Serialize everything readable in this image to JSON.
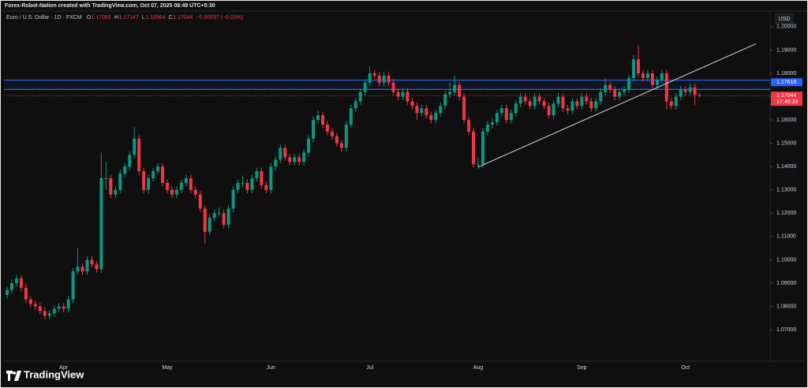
{
  "chart_data": {
    "type": "candlestick",
    "header": "Forex-Robot-Nation created with TradingView.com, Oct 07, 2025 08:49 UTC+5:30",
    "symbol": "Euro / U.S. Dollar · 1D · FXCM",
    "ohlc_letters": [
      "O",
      "H",
      "L",
      "C"
    ],
    "change": "−0.00037 (−0.03%)",
    "currency": "USD",
    "countdown": "17:40:33",
    "brand": "TradingView",
    "up_color": "#089981",
    "down_color": "#f23645",
    "ylim": [
      1.0565,
      1.203
    ],
    "yticks": [
      {
        "value": 1.07,
        "label": "1.07000"
      },
      {
        "value": 1.08,
        "label": "1.08000"
      },
      {
        "value": 1.09,
        "label": "1.09000"
      },
      {
        "value": 1.1,
        "label": "1.10000"
      },
      {
        "value": 1.11,
        "label": "1.11000"
      },
      {
        "value": 1.12,
        "label": "1.12000"
      },
      {
        "value": 1.13,
        "label": "1.13000"
      },
      {
        "value": 1.14,
        "label": "1.14000"
      },
      {
        "value": 1.15,
        "label": "1.15000"
      },
      {
        "value": 1.16,
        "label": "1.16000"
      },
      {
        "value": 1.17,
        "label": "1.17000"
      },
      {
        "value": 1.18,
        "label": "1.18000"
      },
      {
        "value": 1.19,
        "label": "1.19000"
      },
      {
        "value": 1.2,
        "label": "1.20000"
      }
    ],
    "zone": [
      1.1731,
      1.1771
    ],
    "zone_color": "#2962ff",
    "zone_label": 1.17618,
    "trendline": {
      "x": [
        100,
        159
      ],
      "y": [
        1.1398,
        1.1927
      ]
    },
    "categories": [
      null,
      null,
      null,
      null,
      null,
      null,
      null,
      null,
      null,
      null,
      null,
      null,
      "Apr",
      null,
      null,
      null,
      null,
      null,
      null,
      null,
      null,
      null,
      null,
      null,
      null,
      null,
      null,
      null,
      null,
      null,
      null,
      null,
      null,
      null,
      "May",
      null,
      null,
      null,
      null,
      null,
      null,
      null,
      null,
      null,
      null,
      null,
      null,
      null,
      null,
      null,
      null,
      null,
      null,
      null,
      null,
      null,
      "Jun",
      null,
      null,
      null,
      null,
      null,
      null,
      null,
      null,
      null,
      null,
      null,
      null,
      null,
      null,
      null,
      null,
      null,
      null,
      null,
      null,
      "Jul",
      null,
      null,
      null,
      null,
      null,
      null,
      null,
      null,
      null,
      null,
      null,
      null,
      null,
      null,
      null,
      null,
      null,
      null,
      null,
      null,
      null,
      null,
      "Aug",
      null,
      null,
      null,
      null,
      null,
      null,
      null,
      null,
      null,
      null,
      null,
      null,
      null,
      null,
      null,
      null,
      null,
      null,
      null,
      null,
      null,
      "Sep",
      null,
      null,
      null,
      null,
      null,
      null,
      null,
      null,
      null,
      null,
      null,
      null,
      null,
      null,
      null,
      null,
      null,
      null,
      null,
      null,
      null,
      "Oct",
      null,
      null,
      null
    ],
    "ohlc": [
      [
        1.085,
        1.0885,
        1.0835,
        1.087
      ],
      [
        1.087,
        1.0915,
        1.0855,
        1.09
      ],
      [
        1.09,
        1.0935,
        1.0885,
        1.092
      ],
      [
        1.092,
        1.0935,
        1.0865,
        1.088
      ],
      [
        1.088,
        1.0895,
        1.0815,
        1.083
      ],
      [
        1.083,
        1.0845,
        1.0795,
        1.081
      ],
      [
        1.081,
        1.0825,
        1.0785,
        1.08
      ],
      [
        1.08,
        1.0815,
        1.0765,
        1.078
      ],
      [
        1.078,
        1.0795,
        1.0745,
        1.076
      ],
      [
        1.076,
        1.0785,
        1.0745,
        1.077
      ],
      [
        1.077,
        1.0805,
        1.0755,
        1.079
      ],
      [
        1.079,
        1.0815,
        1.0775,
        1.08
      ],
      [
        1.08,
        1.0815,
        1.0775,
        1.079
      ],
      [
        1.079,
        1.0845,
        1.0775,
        1.083
      ],
      [
        1.083,
        1.0965,
        1.0815,
        1.095
      ],
      [
        1.095,
        1.105,
        1.0935,
        1.097
      ],
      [
        1.097,
        1.0985,
        1.0935,
        1.095
      ],
      [
        1.095,
        1.1015,
        1.0935,
        1.1
      ],
      [
        1.1,
        1.1015,
        1.0965,
        1.098
      ],
      [
        1.098,
        1.0995,
        1.0945,
        1.096
      ],
      [
        1.096,
        1.146,
        1.0945,
        1.135
      ],
      [
        1.135,
        1.142,
        1.13,
        1.135
      ],
      [
        1.135,
        1.1365,
        1.1265,
        1.128
      ],
      [
        1.128,
        1.1315,
        1.1265,
        1.13
      ],
      [
        1.13,
        1.1385,
        1.1285,
        1.137
      ],
      [
        1.137,
        1.1415,
        1.1355,
        1.14
      ],
      [
        1.14,
        1.1465,
        1.1385,
        1.145
      ],
      [
        1.145,
        1.157,
        1.1435,
        1.152
      ],
      [
        1.152,
        1.1535,
        1.1365,
        1.138
      ],
      [
        1.138,
        1.1395,
        1.1285,
        1.13
      ],
      [
        1.13,
        1.1365,
        1.1285,
        1.135
      ],
      [
        1.135,
        1.1395,
        1.1335,
        1.138
      ],
      [
        1.138,
        1.1415,
        1.1365,
        1.14
      ],
      [
        1.14,
        1.1415,
        1.1315,
        1.133
      ],
      [
        1.133,
        1.1345,
        1.1285,
        1.13
      ],
      [
        1.13,
        1.1315,
        1.1265,
        1.128
      ],
      [
        1.128,
        1.1315,
        1.1265,
        1.13
      ],
      [
        1.13,
        1.1345,
        1.1285,
        1.133
      ],
      [
        1.133,
        1.1365,
        1.1315,
        1.135
      ],
      [
        1.135,
        1.1365,
        1.1285,
        1.13
      ],
      [
        1.13,
        1.1315,
        1.1265,
        1.128
      ],
      [
        1.128,
        1.1295,
        1.1205,
        1.122
      ],
      [
        1.122,
        1.1235,
        1.107,
        1.112
      ],
      [
        1.112,
        1.1195,
        1.1105,
        1.118
      ],
      [
        1.118,
        1.1215,
        1.1165,
        1.12
      ],
      [
        1.12,
        1.1225,
        1.1185,
        1.12
      ],
      [
        1.12,
        1.1215,
        1.1135,
        1.115
      ],
      [
        1.115,
        1.1235,
        1.1135,
        1.122
      ],
      [
        1.122,
        1.1315,
        1.1205,
        1.13
      ],
      [
        1.13,
        1.1345,
        1.1285,
        1.133
      ],
      [
        1.133,
        1.136,
        1.131,
        1.133
      ],
      [
        1.133,
        1.1345,
        1.1285,
        1.13
      ],
      [
        1.13,
        1.1365,
        1.1285,
        1.135
      ],
      [
        1.135,
        1.1395,
        1.1335,
        1.138
      ],
      [
        1.138,
        1.1395,
        1.1305,
        1.132
      ],
      [
        1.132,
        1.1335,
        1.1285,
        1.13
      ],
      [
        1.13,
        1.1415,
        1.1285,
        1.14
      ],
      [
        1.14,
        1.1445,
        1.1385,
        1.143
      ],
      [
        1.143,
        1.1495,
        1.1415,
        1.148
      ],
      [
        1.148,
        1.1495,
        1.1425,
        1.144
      ],
      [
        1.144,
        1.1455,
        1.1405,
        1.142
      ],
      [
        1.142,
        1.1455,
        1.1405,
        1.144
      ],
      [
        1.144,
        1.1455,
        1.1405,
        1.142
      ],
      [
        1.142,
        1.1475,
        1.1405,
        1.146
      ],
      [
        1.146,
        1.1535,
        1.1445,
        1.152
      ],
      [
        1.152,
        1.1615,
        1.1505,
        1.16
      ],
      [
        1.16,
        1.164,
        1.1585,
        1.162
      ],
      [
        1.162,
        1.1635,
        1.1565,
        1.158
      ],
      [
        1.158,
        1.1595,
        1.1535,
        1.155
      ],
      [
        1.155,
        1.1565,
        1.1515,
        1.153
      ],
      [
        1.153,
        1.1545,
        1.1485,
        1.15
      ],
      [
        1.15,
        1.1515,
        1.1465,
        1.148
      ],
      [
        1.148,
        1.1595,
        1.1465,
        1.158
      ],
      [
        1.158,
        1.1665,
        1.1565,
        1.165
      ],
      [
        1.165,
        1.1695,
        1.1635,
        1.168
      ],
      [
        1.168,
        1.1735,
        1.1665,
        1.172
      ],
      [
        1.172,
        1.1775,
        1.1705,
        1.176
      ],
      [
        1.176,
        1.183,
        1.1745,
        1.18
      ],
      [
        1.18,
        1.1815,
        1.1775,
        1.179
      ],
      [
        1.179,
        1.1805,
        1.1745,
        1.176
      ],
      [
        1.176,
        1.1805,
        1.1745,
        1.179
      ],
      [
        1.179,
        1.1805,
        1.1745,
        1.176
      ],
      [
        1.176,
        1.1775,
        1.1705,
        1.172
      ],
      [
        1.172,
        1.1735,
        1.1685,
        1.17
      ],
      [
        1.17,
        1.1735,
        1.1685,
        1.172
      ],
      [
        1.172,
        1.1735,
        1.1665,
        1.168
      ],
      [
        1.168,
        1.1695,
        1.1645,
        1.166
      ],
      [
        1.166,
        1.1675,
        1.16,
        1.163
      ],
      [
        1.163,
        1.1665,
        1.1615,
        1.165
      ],
      [
        1.165,
        1.1665,
        1.1605,
        1.162
      ],
      [
        1.162,
        1.1635,
        1.1585,
        1.16
      ],
      [
        1.16,
        1.1645,
        1.1585,
        1.163
      ],
      [
        1.163,
        1.1675,
        1.1615,
        1.166
      ],
      [
        1.166,
        1.1725,
        1.1645,
        1.171
      ],
      [
        1.171,
        1.176,
        1.1695,
        1.172
      ],
      [
        1.172,
        1.179,
        1.1705,
        1.175
      ],
      [
        1.175,
        1.1765,
        1.1685,
        1.17
      ],
      [
        1.17,
        1.1715,
        1.1585,
        1.16
      ],
      [
        1.16,
        1.1615,
        1.1535,
        1.155
      ],
      [
        1.155,
        1.1565,
        1.1395,
        1.141
      ],
      [
        1.141,
        1.144,
        1.139,
        1.141
      ],
      [
        1.141,
        1.1565,
        1.1395,
        1.155
      ],
      [
        1.155,
        1.1595,
        1.1535,
        1.158
      ],
      [
        1.158,
        1.1605,
        1.1565,
        1.159
      ],
      [
        1.159,
        1.1645,
        1.1575,
        1.163
      ],
      [
        1.163,
        1.1665,
        1.1615,
        1.165
      ],
      [
        1.165,
        1.1665,
        1.1585,
        1.16
      ],
      [
        1.16,
        1.1645,
        1.1585,
        1.163
      ],
      [
        1.163,
        1.1685,
        1.1615,
        1.167
      ],
      [
        1.167,
        1.1715,
        1.1655,
        1.17
      ],
      [
        1.17,
        1.1715,
        1.1665,
        1.168
      ],
      [
        1.168,
        1.1695,
        1.1645,
        1.166
      ],
      [
        1.166,
        1.1715,
        1.1645,
        1.17
      ],
      [
        1.17,
        1.1715,
        1.1665,
        1.168
      ],
      [
        1.168,
        1.1695,
        1.1645,
        1.166
      ],
      [
        1.166,
        1.1675,
        1.1605,
        1.162
      ],
      [
        1.162,
        1.1685,
        1.1605,
        1.167
      ],
      [
        1.167,
        1.1715,
        1.1655,
        1.17
      ],
      [
        1.17,
        1.1715,
        1.1635,
        1.165
      ],
      [
        1.165,
        1.1665,
        1.1625,
        1.164
      ],
      [
        1.164,
        1.1695,
        1.1625,
        1.168
      ],
      [
        1.168,
        1.1695,
        1.1645,
        1.166
      ],
      [
        1.166,
        1.1715,
        1.1645,
        1.17
      ],
      [
        1.17,
        1.1715,
        1.1665,
        1.168
      ],
      [
        1.168,
        1.1695,
        1.1635,
        1.165
      ],
      [
        1.165,
        1.1695,
        1.1635,
        1.168
      ],
      [
        1.168,
        1.1735,
        1.1665,
        1.172
      ],
      [
        1.172,
        1.178,
        1.1705,
        1.175
      ],
      [
        1.175,
        1.1765,
        1.1715,
        1.173
      ],
      [
        1.173,
        1.1745,
        1.1685,
        1.17
      ],
      [
        1.17,
        1.1735,
        1.1685,
        1.172
      ],
      [
        1.172,
        1.1745,
        1.1705,
        1.173
      ],
      [
        1.173,
        1.1795,
        1.1715,
        1.178
      ],
      [
        1.178,
        1.188,
        1.1765,
        1.186
      ],
      [
        1.186,
        1.192,
        1.1785,
        1.18
      ],
      [
        1.18,
        1.1815,
        1.1765,
        1.178
      ],
      [
        1.178,
        1.1815,
        1.1765,
        1.18
      ],
      [
        1.18,
        1.1815,
        1.1735,
        1.175
      ],
      [
        1.175,
        1.1785,
        1.1735,
        1.177
      ],
      [
        1.177,
        1.1815,
        1.1755,
        1.18
      ],
      [
        1.18,
        1.1815,
        1.1645,
        1.168
      ],
      [
        1.168,
        1.1695,
        1.1645,
        1.166
      ],
      [
        1.166,
        1.1715,
        1.1645,
        1.17
      ],
      [
        1.17,
        1.1745,
        1.1685,
        1.173
      ],
      [
        1.173,
        1.1745,
        1.1705,
        1.172
      ],
      [
        1.172,
        1.1755,
        1.1705,
        1.174
      ],
      [
        1.174,
        1.1755,
        1.1665,
        1.17081
      ],
      [
        1.17081,
        1.17147,
        1.16964,
        1.17044
      ]
    ]
  }
}
